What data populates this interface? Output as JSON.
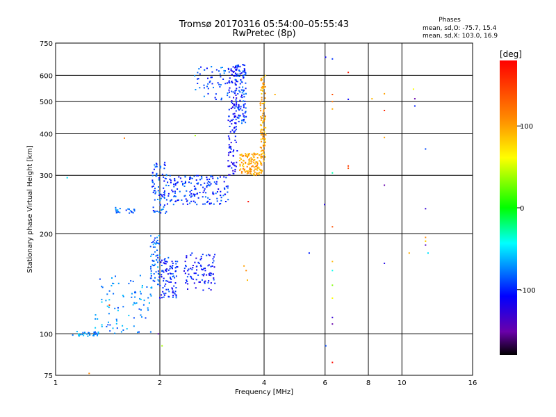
{
  "chart_data": {
    "type": "scatter",
    "title": "Tromsø 20170316 05:54:00–05:55:43",
    "subtitle": "RwPretec (8p)",
    "stats_heading": "Phases",
    "stats_lines": [
      "mean, sd,O: -75.7, 15.4",
      "mean, sd,X: 103.0, 16.9"
    ],
    "xlabel": "Frequency [MHz]",
    "ylabel": "Stationary phase Virtual Height [km]",
    "x_scale": "log",
    "y_scale": "log",
    "xlim": [
      1,
      16
    ],
    "ylim": [
      75,
      750
    ],
    "x_ticks": [
      1,
      2,
      4,
      6,
      8,
      10,
      16
    ],
    "x_tick_labels": [
      "1",
      "2",
      "4",
      "6",
      "8",
      "10",
      "16"
    ],
    "y_ticks": [
      75,
      100,
      200,
      300,
      400,
      500,
      600,
      750
    ],
    "y_tick_labels": [
      "75",
      "100",
      "200",
      "300",
      "400",
      "500",
      "600",
      "750"
    ],
    "grid": true,
    "colorbar": {
      "label": "[deg]",
      "ticks": [
        100,
        0,
        -100
      ],
      "tick_labels": [
        "100",
        "0",
        "-100"
      ],
      "range": [
        -180,
        180
      ]
    },
    "traces": [
      {
        "id": "low-band",
        "x_range": [
          1.12,
          1.33
        ],
        "h_range": [
          98,
          102
        ],
        "phase": -70,
        "n": 30
      },
      {
        "id": "rise-e",
        "x_range": [
          1.3,
          1.9
        ],
        "h_range": [
          100,
          150
        ],
        "phase": -75,
        "n": 90
      },
      {
        "id": "blob-200",
        "x_range": [
          1.88,
          2.0
        ],
        "h_range": [
          140,
          200
        ],
        "phase": -80,
        "n": 60
      },
      {
        "id": "e-layer-left",
        "x_range": [
          2.0,
          2.25
        ],
        "h_range": [
          128,
          170
        ],
        "phase": -100,
        "n": 90
      },
      {
        "id": "e-layer-right",
        "x_range": [
          2.35,
          2.9
        ],
        "h_range": [
          135,
          175
        ],
        "phase": -105,
        "n": 90
      },
      {
        "id": "f-cusp",
        "x_range": [
          1.9,
          2.1
        ],
        "h_range": [
          230,
          330
        ],
        "phase": -90,
        "n": 80
      },
      {
        "id": "f-trace-o",
        "x_range": [
          2.1,
          3.15
        ],
        "h_range": [
          245,
          300
        ],
        "phase": -95,
        "n": 170
      },
      {
        "id": "f-rise-o",
        "x_range": [
          3.15,
          3.35
        ],
        "h_range": [
          300,
          640
        ],
        "phase": -110,
        "n": 120
      },
      {
        "id": "f-top-o",
        "x_range": [
          3.3,
          3.55
        ],
        "h_range": [
          430,
          650
        ],
        "phase": -95,
        "n": 110
      },
      {
        "id": "upper-branch",
        "x_range": [
          2.5,
          3.25
        ],
        "h_range": [
          505,
          640
        ],
        "phase": -90,
        "n": 60
      },
      {
        "id": "f-trace-x",
        "x_range": [
          3.4,
          3.95
        ],
        "h_range": [
          300,
          350
        ],
        "phase": 100,
        "n": 130
      },
      {
        "id": "f-rise-x",
        "x_range": [
          3.9,
          4.05
        ],
        "h_range": [
          330,
          600
        ],
        "phase": 95,
        "n": 90
      },
      {
        "id": "bump-235",
        "x_range": [
          1.47,
          1.7
        ],
        "h_range": [
          230,
          240
        ],
        "phase": -85,
        "n": 22
      }
    ],
    "points": [
      {
        "x": 1.08,
        "y": 295,
        "phase": -50
      },
      {
        "x": 1.58,
        "y": 388,
        "phase": 120
      },
      {
        "x": 1.98,
        "y": 100,
        "phase": -150
      },
      {
        "x": 2.03,
        "y": 92,
        "phase": 40
      },
      {
        "x": 1.25,
        "y": 76,
        "phase": 110
      },
      {
        "x": 1.43,
        "y": 122,
        "phase": 140
      },
      {
        "x": 2.53,
        "y": 395,
        "phase": 40
      },
      {
        "x": 3.6,
        "y": 250,
        "phase": 175
      },
      {
        "x": 3.5,
        "y": 160,
        "phase": 100
      },
      {
        "x": 3.55,
        "y": 155,
        "phase": 110
      },
      {
        "x": 3.58,
        "y": 145,
        "phase": 90
      },
      {
        "x": 4.3,
        "y": 525,
        "phase": 95
      },
      {
        "x": 5.4,
        "y": 175,
        "phase": -100
      },
      {
        "x": 6.02,
        "y": 680,
        "phase": -110
      },
      {
        "x": 5.98,
        "y": 245,
        "phase": -120
      },
      {
        "x": 6.03,
        "y": 92,
        "phase": -90
      },
      {
        "x": 6.3,
        "y": 672,
        "phase": -95
      },
      {
        "x": 6.3,
        "y": 525,
        "phase": 140
      },
      {
        "x": 6.3,
        "y": 500,
        "phase": 120
      },
      {
        "x": 6.3,
        "y": 475,
        "phase": 95
      },
      {
        "x": 6.3,
        "y": 305,
        "phase": -30
      },
      {
        "x": 6.3,
        "y": 210,
        "phase": 140
      },
      {
        "x": 6.3,
        "y": 165,
        "phase": 90
      },
      {
        "x": 6.3,
        "y": 155,
        "phase": -40
      },
      {
        "x": 6.3,
        "y": 140,
        "phase": 30
      },
      {
        "x": 6.3,
        "y": 128,
        "phase": 60
      },
      {
        "x": 6.3,
        "y": 112,
        "phase": -130
      },
      {
        "x": 6.3,
        "y": 107,
        "phase": -150
      },
      {
        "x": 6.3,
        "y": 82,
        "phase": 175
      },
      {
        "x": 7.0,
        "y": 612,
        "phase": 170
      },
      {
        "x": 7.0,
        "y": 508,
        "phase": -110
      },
      {
        "x": 7.0,
        "y": 320,
        "phase": 150
      },
      {
        "x": 7.0,
        "y": 315,
        "phase": 140
      },
      {
        "x": 8.2,
        "y": 510,
        "phase": 90
      },
      {
        "x": 8.9,
        "y": 528,
        "phase": 100
      },
      {
        "x": 8.9,
        "y": 470,
        "phase": 160
      },
      {
        "x": 8.9,
        "y": 390,
        "phase": 100
      },
      {
        "x": 8.9,
        "y": 280,
        "phase": -150
      },
      {
        "x": 8.9,
        "y": 163,
        "phase": -120
      },
      {
        "x": 10.8,
        "y": 545,
        "phase": 60
      },
      {
        "x": 10.9,
        "y": 510,
        "phase": -150
      },
      {
        "x": 10.9,
        "y": 485,
        "phase": -100
      },
      {
        "x": 11.7,
        "y": 360,
        "phase": -90
      },
      {
        "x": 11.7,
        "y": 238,
        "phase": -130
      },
      {
        "x": 11.7,
        "y": 195,
        "phase": 110
      },
      {
        "x": 11.7,
        "y": 190,
        "phase": 80
      },
      {
        "x": 11.7,
        "y": 185,
        "phase": -140
      },
      {
        "x": 11.9,
        "y": 175,
        "phase": -50
      },
      {
        "x": 10.5,
        "y": 175,
        "phase": 95
      }
    ]
  }
}
